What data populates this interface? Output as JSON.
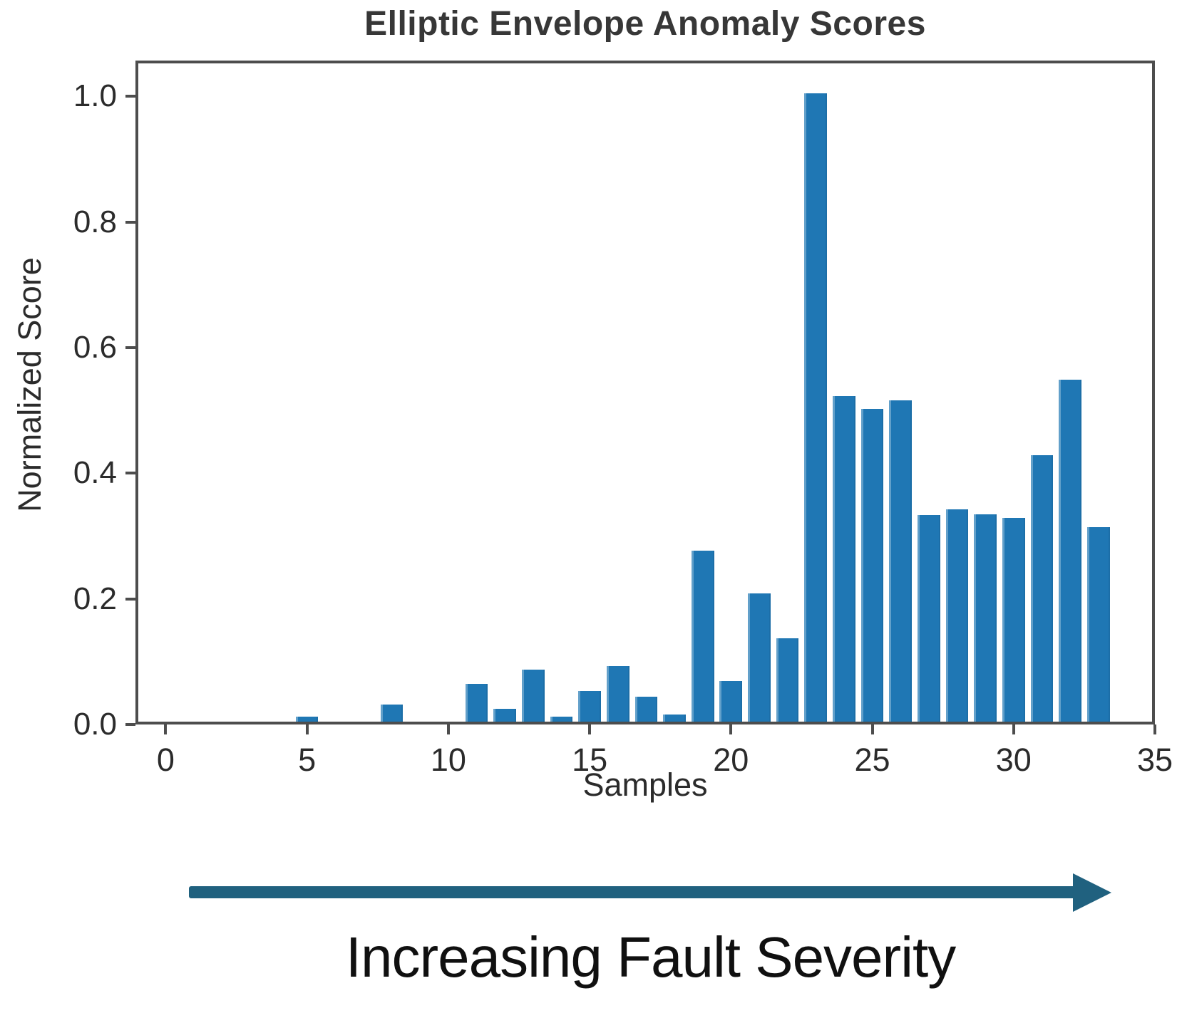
{
  "chart_data": {
    "type": "bar",
    "title": "Elliptic Envelope Anomaly Scores",
    "xlabel": "Samples",
    "ylabel": "Normalized Score",
    "x": [
      0,
      1,
      2,
      3,
      4,
      5,
      6,
      7,
      8,
      9,
      10,
      11,
      12,
      13,
      14,
      15,
      16,
      17,
      18,
      19,
      20,
      21,
      22,
      23,
      24,
      25,
      26,
      27,
      28,
      29,
      30,
      31,
      32,
      33
    ],
    "values": [
      0,
      0,
      0,
      0,
      0,
      0.008,
      0,
      0,
      0.027,
      0,
      0,
      0.06,
      0.02,
      0.083,
      0.008,
      0.049,
      0.089,
      0.04,
      0.011,
      0.272,
      0.065,
      0.204,
      0.133,
      1.0,
      0.518,
      0.498,
      0.512,
      0.329,
      0.338,
      0.33,
      0.324,
      0.424,
      0.544,
      0.31
    ],
    "bar_width": 0.8,
    "bar_color": "#1f77b4",
    "xticks": [
      0,
      5,
      10,
      15,
      20,
      25,
      30,
      35
    ],
    "yticks": [
      0.0,
      0.2,
      0.4,
      0.6,
      0.8,
      1.0
    ],
    "xlim": [
      -1.07,
      35.0
    ],
    "ylim": [
      0,
      1.057
    ],
    "grid": false,
    "legend_position": "none"
  },
  "annotation": {
    "label": "Increasing Fault Severity",
    "arrow_color": "#20617f",
    "text_color": "#101010"
  },
  "frame": {
    "spine_color": "#4d4d4d",
    "tick_text_color": "#2b2b2b"
  }
}
